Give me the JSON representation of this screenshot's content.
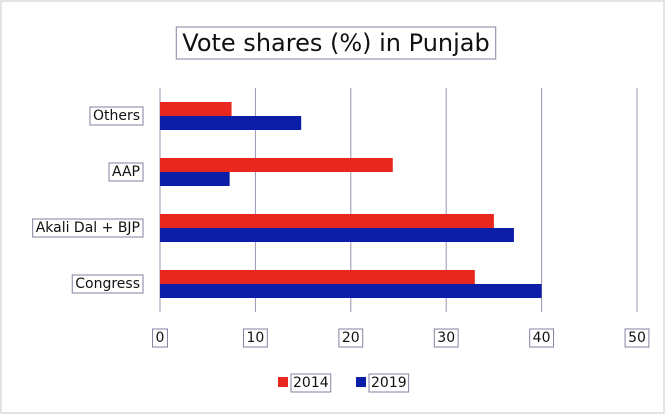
{
  "chart_data": {
    "type": "barh",
    "title": "Vote shares (%) in Punjab",
    "categories": [
      "Others",
      "AAP",
      "Akali Dal + BJP",
      "Congress"
    ],
    "series": [
      {
        "name": "2014",
        "color": "#e8281e",
        "values": [
          7.5,
          24.4,
          35.0,
          33.0
        ]
      },
      {
        "name": "2019",
        "color": "#0c1ea8",
        "values": [
          14.8,
          7.3,
          37.1,
          40.0
        ]
      }
    ],
    "xlim": [
      0,
      50
    ],
    "xticks": [
      0,
      10,
      20,
      30,
      40,
      50
    ],
    "grid": true,
    "legend": "bottom"
  }
}
